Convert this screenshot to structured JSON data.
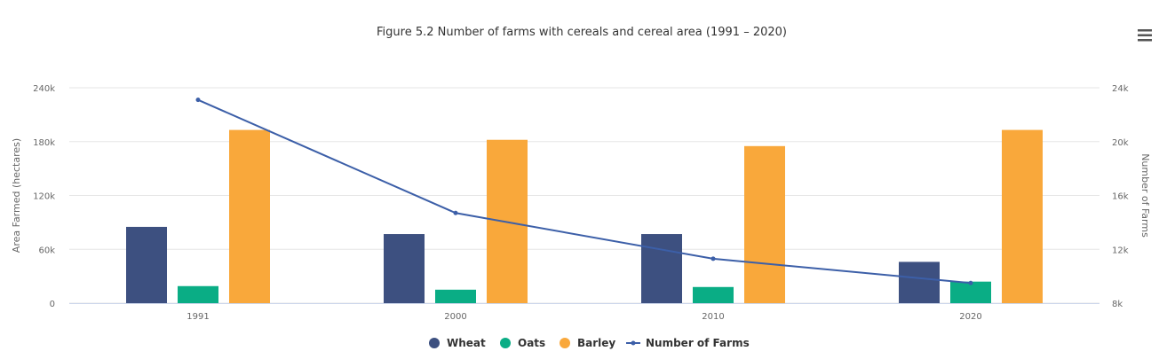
{
  "chart_data": {
    "type": "bar+line",
    "title": "Figure 5.2 Number of farms with cereals and cereal area (1991 – 2020)",
    "categories": [
      "1991",
      "2000",
      "2010",
      "2020"
    ],
    "ylabel": "Area Farmed (hectares)",
    "ylabel_right": "Number of Farms",
    "ylim": [
      0,
      240000
    ],
    "ylim_right": [
      8000,
      24000
    ],
    "yticks": [
      "0",
      "60k",
      "120k",
      "180k",
      "240k"
    ],
    "yticks_right": [
      "8k",
      "12k",
      "16k",
      "20k",
      "24k"
    ],
    "series": [
      {
        "name": "Wheat",
        "type": "bar",
        "axis": "left",
        "color": "#3d5080",
        "values": [
          85000,
          77000,
          77000,
          46000
        ]
      },
      {
        "name": "Oats",
        "type": "bar",
        "axis": "left",
        "color": "#0aad85",
        "values": [
          19000,
          15000,
          18000,
          24000
        ]
      },
      {
        "name": "Barley",
        "type": "bar",
        "axis": "left",
        "color": "#f9a83b",
        "values": [
          193000,
          182000,
          175000,
          193000
        ]
      },
      {
        "name": "Number of Farms",
        "type": "line",
        "axis": "right",
        "color": "#3c5fa8",
        "values": [
          23100,
          14700,
          11300,
          9500
        ]
      }
    ],
    "legend_position": "bottom-center",
    "grid": true
  },
  "menu": {
    "icon": "hamburger-menu-icon"
  }
}
